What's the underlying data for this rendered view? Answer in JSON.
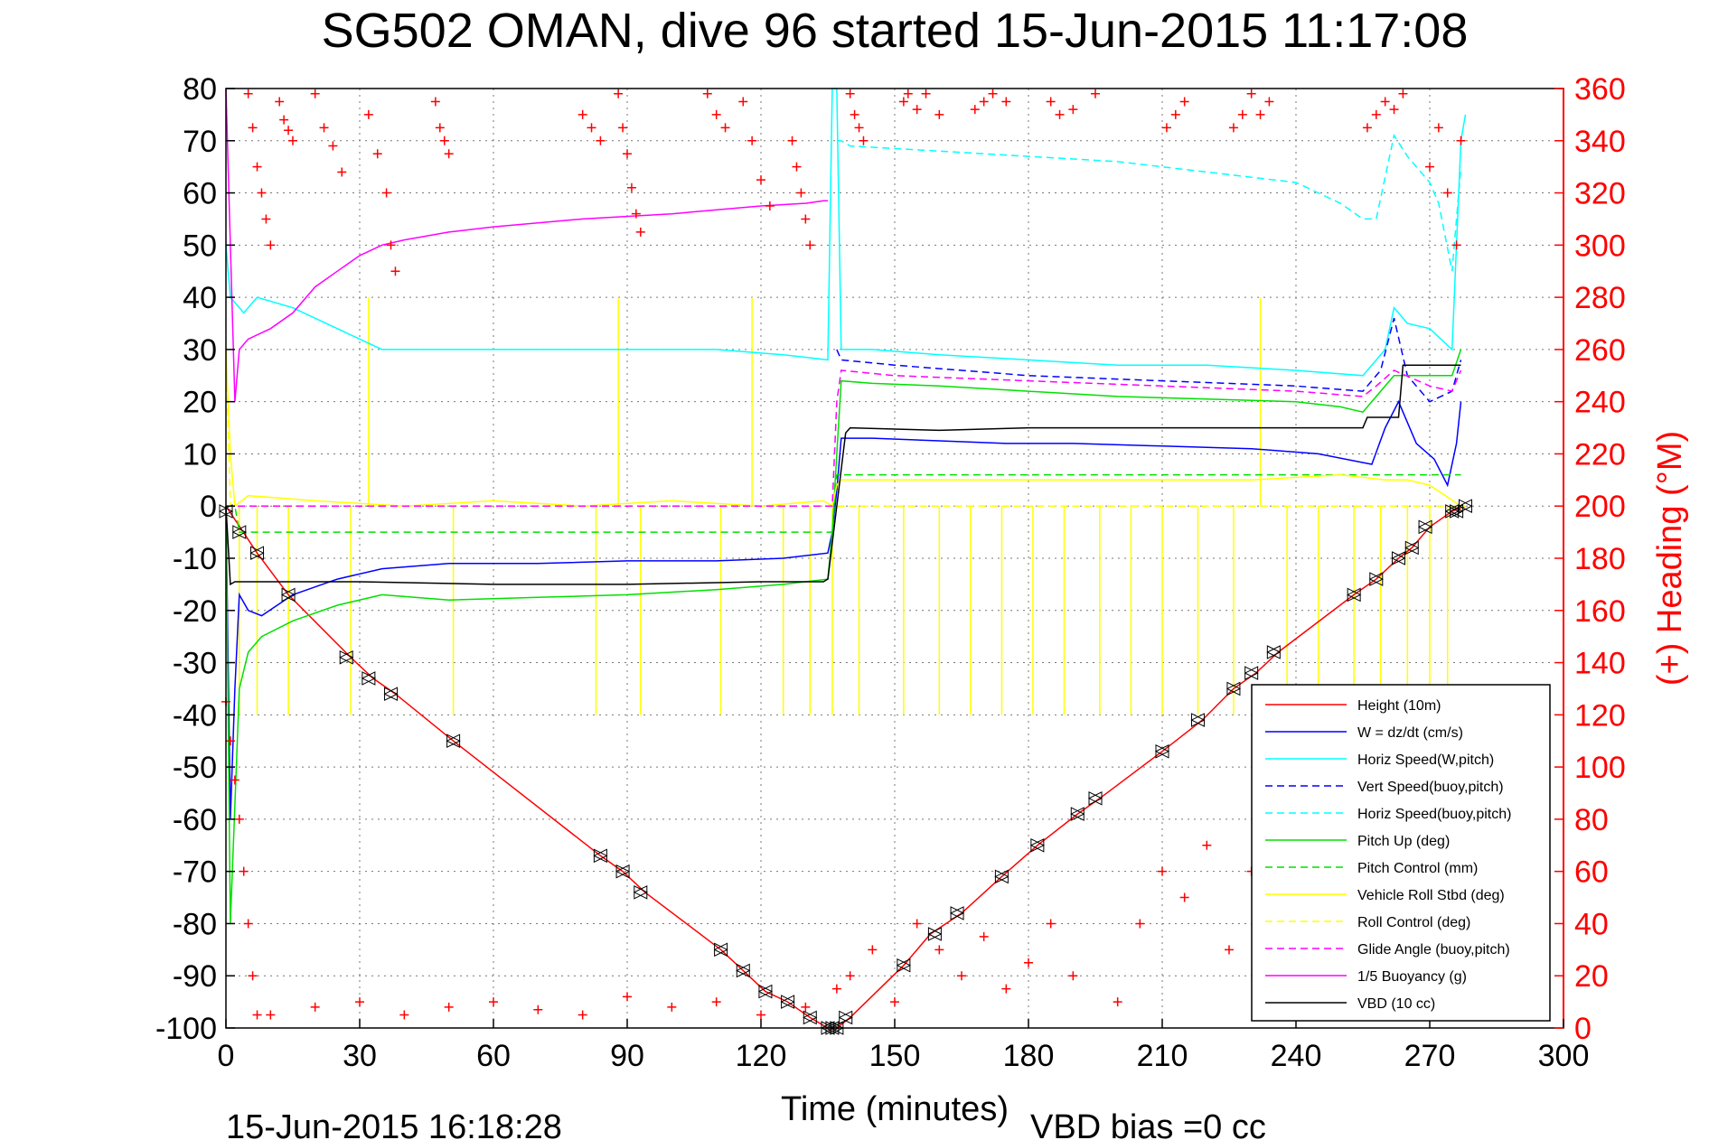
{
  "chart_data": {
    "type": "line",
    "title": "SG502 OMAN, dive 96 started 15-Jun-2015 11:17:08",
    "xlabel": "Time (minutes)",
    "ylabel": "",
    "y2label": "(+) Heading (°M)",
    "footer_left": "15-Jun-2015 16:18:28",
    "footer_right": "VBD bias =0 cc",
    "xlim": [
      0,
      300
    ],
    "ylim": [
      -100,
      80
    ],
    "y2lim": [
      0,
      360
    ],
    "xticks": [
      0,
      30,
      60,
      90,
      120,
      150,
      180,
      210,
      240,
      270,
      300
    ],
    "yticks": [
      80,
      70,
      60,
      50,
      40,
      30,
      20,
      10,
      0,
      -10,
      -20,
      -30,
      -40,
      -50,
      -60,
      -70,
      -80,
      -90,
      -100
    ],
    "y2ticks": [
      360,
      340,
      320,
      300,
      280,
      260,
      240,
      220,
      200,
      180,
      160,
      140,
      120,
      100,
      80,
      60,
      40,
      20,
      0
    ],
    "grid": true,
    "legend_position": "bottom-right",
    "colors": {
      "red": "#ff0000",
      "blue": "#0000ff",
      "cyan": "#00ffff",
      "green": "#00e000",
      "yellow": "#ffff00",
      "magenta": "#ff00ff",
      "black": "#000000"
    },
    "series": [
      {
        "name": "Height (10m)",
        "color": "#ff0000",
        "dash": "solid",
        "x": [
          0,
          7,
          14,
          28,
          33,
          38,
          51,
          84,
          89,
          94,
          111,
          116,
          121,
          126,
          131,
          135,
          137,
          140,
          152,
          158,
          165,
          174,
          182,
          191,
          196,
          210,
          219,
          226,
          231,
          236,
          253,
          258,
          263,
          266,
          270,
          275,
          278
        ],
        "y": [
          0,
          -9,
          -17,
          -29,
          -33,
          -36,
          -45,
          -67,
          -70,
          -74,
          -85,
          -89,
          -93,
          -95,
          -98,
          -100,
          -100,
          -98,
          -88,
          -82,
          -78,
          -71,
          -65,
          -59,
          -56,
          -47,
          -41,
          -35,
          -32,
          -28,
          -17,
          -14,
          -10,
          -8,
          -4,
          -1,
          0
        ]
      },
      {
        "name": "W = dz/dt (cm/s)",
        "color": "#0000ff",
        "dash": "solid",
        "x": [
          0,
          1,
          2,
          3,
          5,
          8,
          15,
          25,
          35,
          50,
          70,
          90,
          110,
          125,
          135,
          136,
          137,
          138,
          145,
          160,
          175,
          190,
          210,
          230,
          245,
          257,
          260,
          263,
          267,
          271,
          274,
          276,
          277
        ],
        "y": [
          0,
          -60,
          -35,
          -17,
          -20,
          -21,
          -17,
          -14,
          -12,
          -11,
          -11,
          -10.5,
          -10.5,
          -10,
          -9,
          -5,
          3,
          13,
          13,
          12.5,
          12,
          12,
          11.5,
          11,
          10,
          8,
          15,
          20,
          12,
          9,
          4,
          12,
          20
        ]
      },
      {
        "name": "Horiz Speed(W,pitch)",
        "color": "#00ffff",
        "dash": "solid",
        "x": [
          0,
          1,
          2,
          4,
          7,
          15,
          25,
          35,
          50,
          70,
          90,
          110,
          125,
          135,
          136,
          137,
          138,
          145,
          160,
          180,
          200,
          220,
          240,
          255,
          260,
          262,
          265,
          270,
          275,
          277,
          278
        ],
        "y": [
          50,
          40,
          39,
          37,
          40,
          38,
          34,
          30,
          30,
          30,
          30,
          30,
          29,
          28,
          80,
          80,
          30,
          30,
          29,
          28,
          27,
          27,
          26,
          25,
          30,
          38,
          35,
          34,
          30,
          70,
          75
        ]
      },
      {
        "name": "Vert Speed(buoy,pitch)",
        "color": "#0000ff",
        "dash": "dashed",
        "x": [
          137,
          138,
          150,
          180,
          210,
          240,
          255,
          259,
          262,
          265,
          270,
          275,
          277
        ],
        "y": [
          30,
          28,
          27,
          25,
          24,
          23,
          22,
          26,
          36,
          25,
          20,
          22,
          28
        ]
      },
      {
        "name": "Horiz Speed(buoy,pitch)",
        "color": "#00ffff",
        "dash": "dashed",
        "x": [
          137,
          138,
          140,
          160,
          180,
          200,
          220,
          240,
          250,
          255,
          258,
          262,
          265,
          270,
          272,
          275,
          277
        ],
        "y": [
          70,
          70,
          69,
          68,
          67,
          66,
          64,
          62,
          58,
          55,
          55,
          71,
          67,
          62,
          58,
          45,
          65
        ]
      },
      {
        "name": "Pitch Up (deg)",
        "color": "#00e000",
        "dash": "solid",
        "x": [
          0,
          1,
          3,
          5,
          8,
          15,
          25,
          35,
          50,
          70,
          90,
          110,
          125,
          135,
          136,
          137,
          138,
          145,
          160,
          180,
          200,
          220,
          240,
          250,
          255,
          262,
          268,
          272,
          275,
          277
        ],
        "y": [
          0,
          -80,
          -35,
          -28,
          -25,
          -22,
          -19,
          -17,
          -18,
          -17.5,
          -17,
          -16,
          -15,
          -14,
          -5,
          10,
          24,
          23.5,
          23,
          22,
          21,
          20.5,
          20,
          19,
          18,
          25,
          25,
          25,
          25,
          30
        ]
      },
      {
        "name": "Pitch Control (mm)",
        "color": "#00e000",
        "dash": "dashed",
        "x": [
          0,
          2,
          3,
          134,
          136,
          137,
          138,
          255,
          256,
          277
        ],
        "y": [
          0,
          0,
          -5,
          -5,
          -5,
          6,
          6,
          6,
          6,
          6
        ]
      },
      {
        "name": "Vehicle Roll Stbd (deg)",
        "color": "#ffff00",
        "dash": "solid",
        "x": [
          0,
          1,
          2,
          5,
          20,
          40,
          60,
          80,
          100,
          120,
          134,
          136,
          137,
          138,
          150,
          170,
          190,
          210,
          230,
          250,
          260,
          265,
          270,
          277
        ],
        "y": [
          30,
          10,
          0,
          2,
          1,
          0,
          1,
          0,
          1,
          0,
          1,
          0,
          4,
          5,
          5,
          5,
          5,
          5,
          5,
          6,
          5,
          5,
          4,
          0
        ]
      },
      {
        "name": "Roll Control (deg)",
        "color": "#ffff00",
        "dash": "dashed",
        "x": [
          0,
          1,
          2,
          278
        ],
        "y": [
          30,
          0,
          0,
          0
        ]
      },
      {
        "name": "Glide Angle (buoy,pitch)",
        "color": "#ff00ff",
        "dash": "dashed",
        "x": [
          0,
          134,
          136,
          137,
          138,
          150,
          180,
          210,
          240,
          255,
          258,
          262,
          270,
          275,
          277
        ],
        "y": [
          0,
          0,
          0,
          20,
          26,
          25,
          24,
          23,
          22,
          21,
          23,
          26,
          23,
          22,
          26
        ]
      },
      {
        "name": "1/5 Buoyancy (g)",
        "color": "#ff00ff",
        "dash": "solid",
        "x": [
          0,
          1,
          2,
          3,
          5,
          10,
          15,
          20,
          25,
          30,
          35,
          40,
          50,
          60,
          80,
          100,
          120,
          130,
          134,
          135
        ],
        "y": [
          80,
          50,
          20,
          30,
          32,
          34,
          37,
          42,
          45,
          48,
          50,
          51,
          52.5,
          53.5,
          55,
          56,
          57.5,
          58,
          58.5,
          58.5
        ]
      },
      {
        "name": "VBD (10 cc)",
        "color": "#000000",
        "dash": "solid",
        "x": [
          0,
          1,
          2,
          10,
          30,
          60,
          90,
          120,
          134,
          135,
          137,
          139,
          140,
          160,
          180,
          200,
          230,
          255,
          256,
          263,
          264,
          277
        ],
        "y": [
          0,
          -15,
          -14.5,
          -14.5,
          -14.5,
          -15,
          -15,
          -14.5,
          -14.5,
          -14,
          0,
          14,
          15,
          14.5,
          15,
          15,
          15,
          15,
          17,
          17,
          27,
          27
        ]
      }
    ],
    "heading_markers": {
      "color": "#ff0000",
      "marker": "+",
      "axis": "y2",
      "segments": [
        {
          "x": [
            0,
            1,
            2,
            3,
            4,
            5,
            6,
            7
          ],
          "y": [
            125,
            110,
            95,
            80,
            60,
            40,
            20,
            5
          ]
        },
        {
          "x": [
            5,
            6,
            7,
            8,
            9,
            10
          ],
          "y": [
            358,
            345,
            330,
            320,
            310,
            300
          ]
        },
        {
          "x": [
            12,
            13,
            14,
            15
          ],
          "y": [
            355,
            348,
            344,
            340
          ]
        },
        {
          "x": [
            20,
            22,
            24,
            26
          ],
          "y": [
            358,
            345,
            338,
            328
          ]
        },
        {
          "x": [
            32,
            34,
            36,
            37,
            38
          ],
          "y": [
            350,
            335,
            320,
            300,
            290
          ]
        },
        {
          "x": [
            47,
            48,
            49,
            50
          ],
          "y": [
            355,
            345,
            340,
            335
          ]
        },
        {
          "x": [
            80,
            82,
            84
          ],
          "y": [
            350,
            345,
            340
          ]
        },
        {
          "x": [
            88,
            89,
            90,
            91,
            92,
            93
          ],
          "y": [
            358,
            345,
            335,
            322,
            312,
            305
          ]
        },
        {
          "x": [
            108,
            110,
            112
          ],
          "y": [
            358,
            350,
            345
          ]
        },
        {
          "x": [
            116,
            118,
            120,
            122
          ],
          "y": [
            355,
            340,
            325,
            315
          ]
        },
        {
          "x": [
            127,
            128,
            129,
            130,
            131
          ],
          "y": [
            340,
            330,
            320,
            310,
            300
          ]
        },
        {
          "x": [
            140,
            141,
            142,
            143
          ],
          "y": [
            358,
            350,
            345,
            340
          ]
        },
        {
          "x": [
            152,
            153,
            155,
            157,
            160
          ],
          "y": [
            355,
            358,
            352,
            358,
            350
          ]
        },
        {
          "x": [
            168,
            170,
            172,
            175
          ],
          "y": [
            352,
            355,
            358,
            355
          ]
        },
        {
          "x": [
            185,
            187,
            190,
            195
          ],
          "y": [
            355,
            350,
            352,
            358
          ]
        },
        {
          "x": [
            211,
            213,
            215
          ],
          "y": [
            345,
            350,
            355
          ]
        },
        {
          "x": [
            226,
            228,
            230,
            232,
            234
          ],
          "y": [
            345,
            350,
            358,
            350,
            355
          ]
        },
        {
          "x": [
            256,
            258,
            260,
            262,
            264
          ],
          "y": [
            345,
            350,
            355,
            352,
            358
          ]
        },
        {
          "x": [
            270,
            272,
            274,
            276,
            277
          ],
          "y": [
            330,
            345,
            320,
            300,
            340
          ]
        },
        {
          "x": [
            10,
            20,
            30,
            40,
            50,
            60,
            70,
            80,
            90,
            100,
            110,
            120,
            130
          ],
          "y": [
            5,
            8,
            10,
            5,
            8,
            10,
            7,
            5,
            12,
            8,
            10,
            5,
            8
          ]
        },
        {
          "x": [
            137,
            140,
            145,
            150,
            155
          ],
          "y": [
            15,
            20,
            30,
            10,
            40
          ]
        },
        {
          "x": [
            160,
            165,
            170,
            175,
            180,
            185,
            190
          ],
          "y": [
            30,
            20,
            35,
            15,
            25,
            40,
            20
          ]
        },
        {
          "x": [
            200,
            205,
            210,
            215,
            220,
            225,
            230,
            235,
            240
          ],
          "y": [
            10,
            40,
            60,
            50,
            70,
            30,
            60,
            50,
            80
          ]
        },
        {
          "x": [
            245,
            250,
            255,
            260,
            265
          ],
          "y": [
            40,
            60,
            30,
            20,
            10
          ]
        }
      ]
    },
    "black_markers": {
      "x": [
        0,
        3,
        7,
        14,
        27,
        32,
        37,
        51,
        84,
        89,
        93,
        111,
        116,
        121,
        126,
        131,
        135,
        136,
        137,
        139,
        152,
        159,
        164,
        174,
        182,
        191,
        195,
        210,
        218,
        226,
        230,
        235,
        253,
        258,
        263,
        266,
        269,
        275,
        276,
        278
      ],
      "y": [
        -1,
        -5,
        -9,
        -17,
        -29,
        -33,
        -36,
        -45,
        -67,
        -70,
        -74,
        -85,
        -89,
        -93,
        -95,
        -98,
        -100,
        -100,
        -100,
        -98,
        -88,
        -82,
        -78,
        -71,
        -65,
        -59,
        -56,
        -47,
        -41,
        -35,
        -32,
        -28,
        -17,
        -14,
        -10,
        -8,
        -4,
        -1,
        -1,
        0
      ]
    },
    "yellow_spikes": {
      "x": [
        3,
        7,
        14,
        28,
        32,
        51,
        83,
        88,
        93,
        111,
        118,
        125,
        131,
        136,
        142,
        152,
        160,
        167,
        174,
        181,
        188,
        196,
        203,
        210,
        218,
        226,
        232,
        238,
        245,
        253,
        259,
        265,
        270,
        274
      ],
      "y": [
        -40,
        -40,
        -40,
        -40,
        40,
        -40,
        -40,
        40,
        -40,
        -40,
        40,
        -40,
        -40,
        -40,
        -40,
        -40,
        -40,
        -40,
        -40,
        -40,
        -40,
        -40,
        -40,
        -40,
        -40,
        -40,
        40,
        -40,
        -40,
        -40,
        -40,
        -40,
        -40,
        -40
      ]
    }
  }
}
